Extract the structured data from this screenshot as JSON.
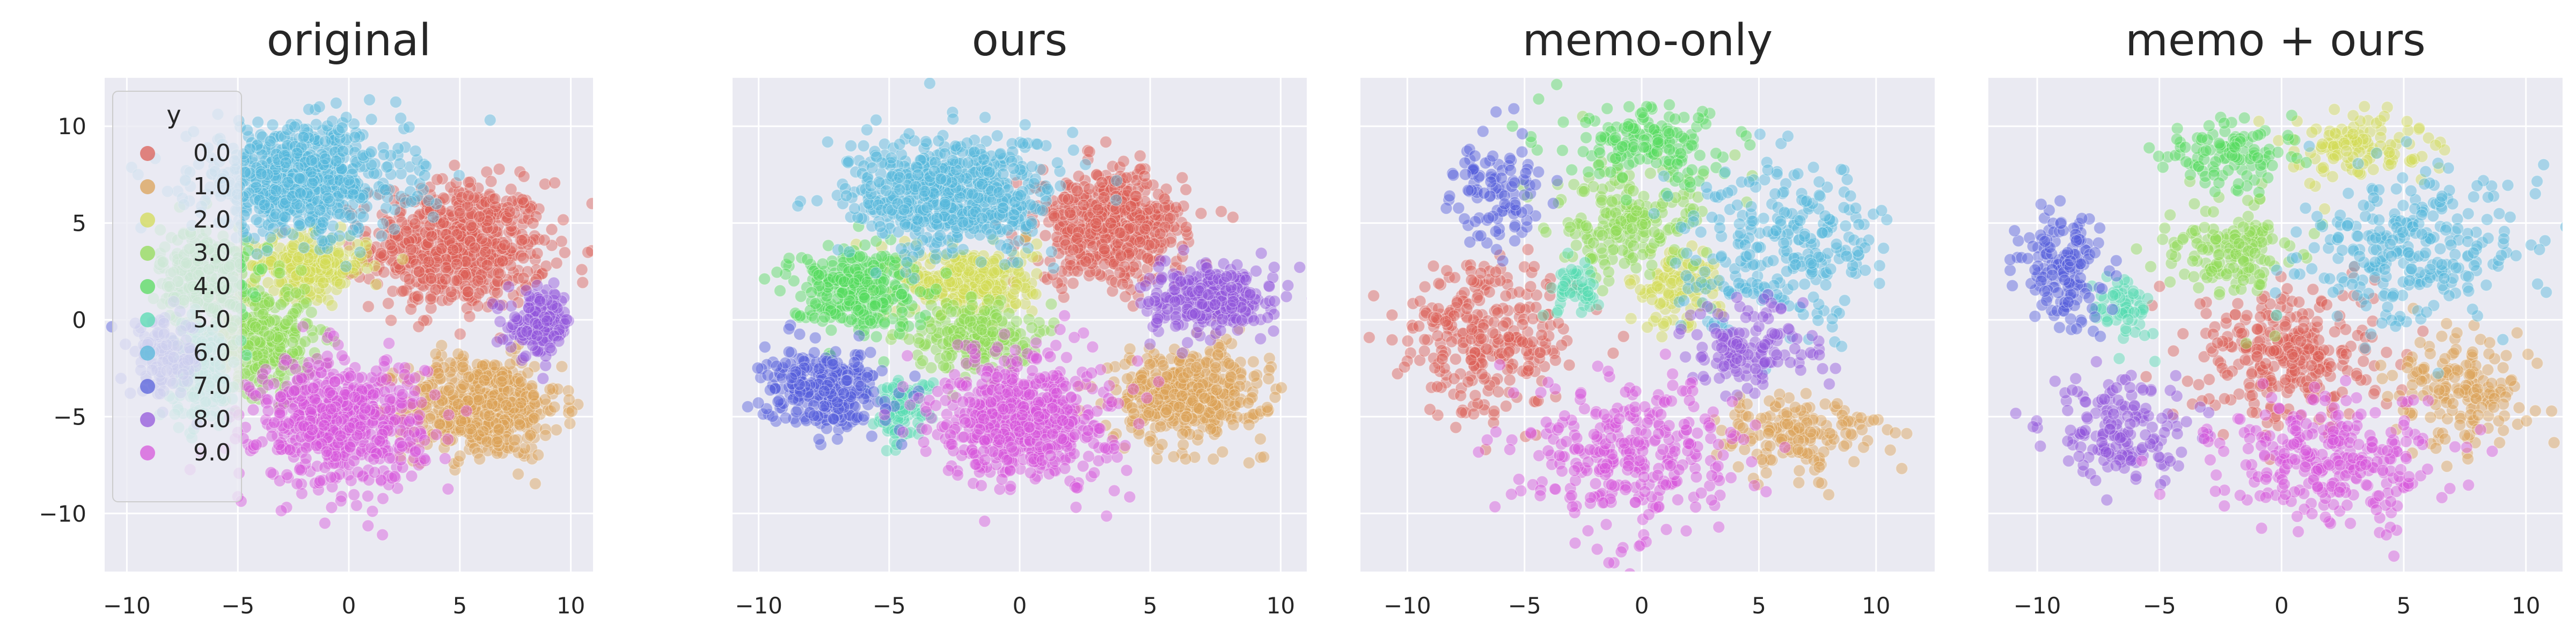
{
  "chart_data": [
    {
      "type": "scatter",
      "title": "original",
      "xlim": [
        -11,
        11
      ],
      "ylim": [
        -13,
        12.5
      ],
      "xticks": [
        "−10",
        "−5",
        "0",
        "5",
        "10"
      ],
      "yticks": [
        "10",
        "5",
        "0",
        "−5",
        "−10"
      ],
      "grid": true,
      "legend": {
        "title": "y",
        "placement": "top-left"
      },
      "clusters": [
        {
          "label": "0.0",
          "cx": 5.0,
          "cy": 3.8,
          "rx": 3.6,
          "ry": 3.0,
          "n": 650
        },
        {
          "label": "1.0",
          "cx": 6.0,
          "cy": -4.5,
          "rx": 3.2,
          "ry": 2.4,
          "n": 520
        },
        {
          "label": "2.0",
          "cx": -1.8,
          "cy": 2.8,
          "rx": 2.4,
          "ry": 1.4,
          "n": 260
        },
        {
          "label": "3.0",
          "cx": -3.8,
          "cy": -1.0,
          "rx": 2.0,
          "ry": 2.6,
          "n": 300
        },
        {
          "label": "4.0",
          "cx": -6.5,
          "cy": 2.2,
          "rx": 1.8,
          "ry": 2.4,
          "n": 260
        },
        {
          "label": "5.0",
          "cx": -6.6,
          "cy": -2.6,
          "rx": 1.3,
          "ry": 2.4,
          "n": 180
        },
        {
          "label": "6.0",
          "cx": -2.2,
          "cy": 7.2,
          "rx": 4.3,
          "ry": 2.6,
          "n": 700
        },
        {
          "label": "7.0",
          "cx": -8.2,
          "cy": -2.0,
          "rx": 1.5,
          "ry": 1.8,
          "n": 120
        },
        {
          "label": "8.0",
          "cx": 8.6,
          "cy": -0.2,
          "rx": 1.3,
          "ry": 1.5,
          "n": 160
        },
        {
          "label": "9.0",
          "cx": -0.4,
          "cy": -5.3,
          "rx": 3.4,
          "ry": 3.0,
          "n": 620
        }
      ]
    },
    {
      "type": "scatter",
      "title": "ours",
      "xlim": [
        -11,
        11
      ],
      "ylim": [
        -13,
        12.5
      ],
      "xticks": [
        "−10",
        "−5",
        "0",
        "5",
        "10"
      ],
      "yticks": [],
      "grid": true,
      "clusters": [
        {
          "label": "0.0",
          "cx": 3.5,
          "cy": 4.8,
          "rx": 2.6,
          "ry": 2.6,
          "n": 520
        },
        {
          "label": "1.0",
          "cx": 6.5,
          "cy": -3.8,
          "rx": 2.6,
          "ry": 2.2,
          "n": 420
        },
        {
          "label": "2.0",
          "cx": -2.0,
          "cy": 2.0,
          "rx": 2.4,
          "ry": 1.6,
          "n": 300
        },
        {
          "label": "3.0",
          "cx": -1.8,
          "cy": -0.8,
          "rx": 2.0,
          "ry": 1.6,
          "n": 220
        },
        {
          "label": "4.0",
          "cx": -6.4,
          "cy": 1.6,
          "rx": 2.2,
          "ry": 2.0,
          "n": 300
        },
        {
          "label": "5.0",
          "cx": -4.5,
          "cy": -4.6,
          "rx": 1.0,
          "ry": 1.4,
          "n": 90
        },
        {
          "label": "6.0",
          "cx": -2.6,
          "cy": 6.4,
          "rx": 3.6,
          "ry": 2.8,
          "n": 620
        },
        {
          "label": "7.0",
          "cx": -7.5,
          "cy": -3.6,
          "rx": 2.0,
          "ry": 1.8,
          "n": 330
        },
        {
          "label": "8.0",
          "cx": 7.3,
          "cy": 1.0,
          "rx": 2.2,
          "ry": 1.6,
          "n": 300
        },
        {
          "label": "9.0",
          "cx": 0.2,
          "cy": -5.0,
          "rx": 3.0,
          "ry": 3.0,
          "n": 600
        }
      ]
    },
    {
      "type": "scatter",
      "title": "memo-only",
      "xlim": [
        -12,
        12.5
      ],
      "ylim": [
        -13,
        12.5
      ],
      "xticks": [
        "−10",
        "−5",
        "0",
        "5",
        "10"
      ],
      "yticks": [],
      "grid": true,
      "clusters": [
        {
          "label": "0.0",
          "cx": -6.5,
          "cy": -1.0,
          "rx": 3.4,
          "ry": 3.6,
          "n": 300
        },
        {
          "label": "1.0",
          "cx": 6.6,
          "cy": -5.8,
          "rx": 3.2,
          "ry": 2.0,
          "n": 160
        },
        {
          "label": "2.0",
          "cx": 1.4,
          "cy": 1.5,
          "rx": 1.8,
          "ry": 1.8,
          "n": 110
        },
        {
          "label": "3.0",
          "cx": -0.6,
          "cy": 5.0,
          "rx": 3.0,
          "ry": 2.6,
          "n": 200
        },
        {
          "label": "4.0",
          "cx": 0.4,
          "cy": 9.0,
          "rx": 3.4,
          "ry": 1.8,
          "n": 160
        },
        {
          "label": "5.0",
          "cx": -2.6,
          "cy": 1.5,
          "rx": 1.0,
          "ry": 1.2,
          "n": 50
        },
        {
          "label": "6.0",
          "cx": 6.0,
          "cy": 3.8,
          "rx": 4.0,
          "ry": 3.8,
          "n": 280
        },
        {
          "label": "7.0",
          "cx": -6.2,
          "cy": 6.6,
          "rx": 1.7,
          "ry": 2.4,
          "n": 110
        },
        {
          "label": "8.0",
          "cx": 4.8,
          "cy": -1.5,
          "rx": 2.6,
          "ry": 2.2,
          "n": 140
        },
        {
          "label": "9.0",
          "cx": -0.5,
          "cy": -7.0,
          "rx": 4.2,
          "ry": 3.6,
          "n": 320
        }
      ]
    },
    {
      "type": "scatter",
      "title": "memo + ours",
      "xlim": [
        -12,
        11.5
      ],
      "ylim": [
        -13,
        12.5
      ],
      "xticks": [
        "−10",
        "−5",
        "0",
        "5",
        "10"
      ],
      "yticks": [],
      "grid": true,
      "clusters": [
        {
          "label": "0.0",
          "cx": 0.3,
          "cy": -1.8,
          "rx": 3.4,
          "ry": 3.2,
          "n": 300
        },
        {
          "label": "1.0",
          "cx": 7.6,
          "cy": -3.6,
          "rx": 2.6,
          "ry": 2.6,
          "n": 170
        },
        {
          "label": "2.0",
          "cx": 3.2,
          "cy": 9.0,
          "rx": 2.4,
          "ry": 1.6,
          "n": 120
        },
        {
          "label": "3.0",
          "cx": -2.0,
          "cy": 3.6,
          "rx": 2.4,
          "ry": 2.2,
          "n": 160
        },
        {
          "label": "4.0",
          "cx": -2.2,
          "cy": 8.6,
          "rx": 2.2,
          "ry": 1.6,
          "n": 110
        },
        {
          "label": "5.0",
          "cx": -6.4,
          "cy": 0.5,
          "rx": 1.4,
          "ry": 1.6,
          "n": 60
        },
        {
          "label": "6.0",
          "cx": 5.4,
          "cy": 3.6,
          "rx": 4.0,
          "ry": 3.4,
          "n": 280
        },
        {
          "label": "7.0",
          "cx": -9.0,
          "cy": 2.8,
          "rx": 1.6,
          "ry": 3.0,
          "n": 160
        },
        {
          "label": "8.0",
          "cx": -6.4,
          "cy": -5.8,
          "rx": 2.8,
          "ry": 2.4,
          "n": 170
        },
        {
          "label": "9.0",
          "cx": 2.0,
          "cy": -7.4,
          "rx": 4.0,
          "ry": 2.8,
          "n": 300
        }
      ]
    }
  ],
  "legend": {
    "title": "y",
    "labels": [
      "0.0",
      "1.0",
      "2.0",
      "3.0",
      "4.0",
      "5.0",
      "6.0",
      "7.0",
      "8.0",
      "9.0"
    ],
    "colors": [
      "#db5f57",
      "#dba157",
      "#d3db57",
      "#91db57",
      "#57db5f",
      "#57dbb1",
      "#57b8db",
      "#5760db",
      "#9357db",
      "#d657db"
    ]
  },
  "theme": {
    "axes_bg": "#eaeaf2",
    "grid": "#ffffff",
    "text": "#262626"
  }
}
